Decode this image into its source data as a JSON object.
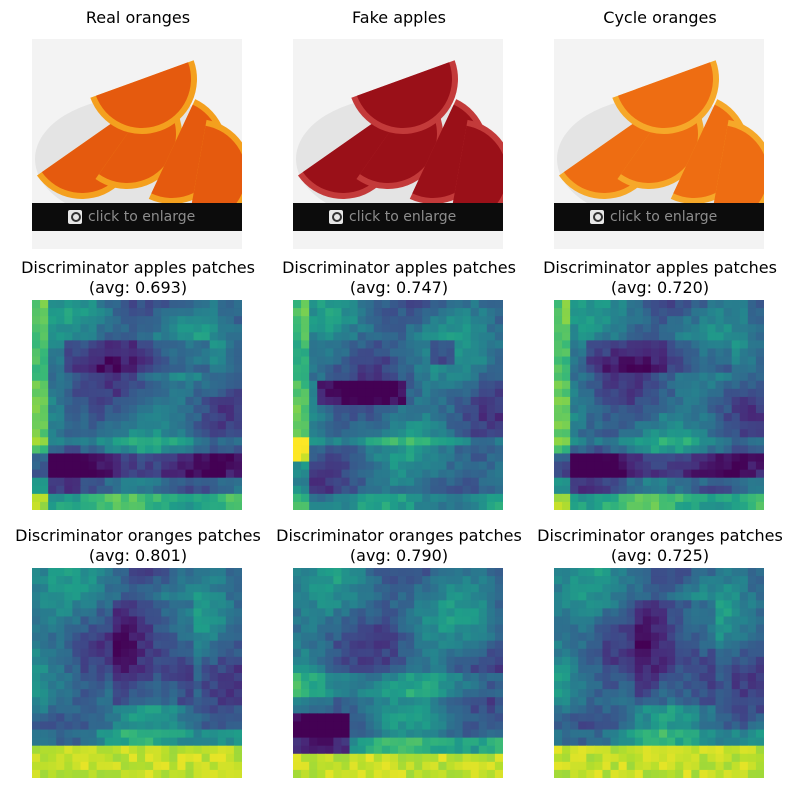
{
  "chart_data": [
    {
      "type": "image",
      "title": "Real oranges",
      "content": "orange slices",
      "fruit_color": "#e55a0e",
      "rind_color": "#f4a01e",
      "caption": "click to enlarge",
      "caption_icon": "magnifier-icon"
    },
    {
      "type": "image",
      "title": "Fake apples",
      "content": "red-tinted orange slices",
      "fruit_color": "#9a1018",
      "rind_color": "#c33a3a",
      "caption": "click to enlarge",
      "caption_icon": "magnifier-icon"
    },
    {
      "type": "image",
      "title": "Cycle oranges",
      "content": "orange slices",
      "fruit_color": "#ee6d12",
      "rind_color": "#f6a829",
      "caption": "click to enlarge",
      "caption_icon": "magnifier-icon"
    },
    {
      "type": "heatmap",
      "title": "Discriminator apples patches",
      "subtitle": "(avg: 0.693)",
      "avg": 0.693,
      "colormap": "viridis",
      "grid": [
        26,
        26
      ],
      "pattern": "band_dark_lower"
    },
    {
      "type": "heatmap",
      "title": "Discriminator apples patches",
      "subtitle": "(avg: 0.747)",
      "avg": 0.747,
      "colormap": "viridis",
      "grid": [
        26,
        26
      ],
      "pattern": "swirl_bright_left"
    },
    {
      "type": "heatmap",
      "title": "Discriminator apples patches",
      "subtitle": "(avg: 0.720)",
      "avg": 0.72,
      "colormap": "viridis",
      "grid": [
        26,
        26
      ],
      "pattern": "band_dark_lower"
    },
    {
      "type": "heatmap",
      "title": "Discriminator oranges patches",
      "subtitle": "(avg: 0.801)",
      "avg": 0.801,
      "colormap": "viridis",
      "grid": [
        26,
        26
      ],
      "pattern": "bright_bottom"
    },
    {
      "type": "heatmap",
      "title": "Discriminator oranges patches",
      "subtitle": "(avg: 0.790)",
      "avg": 0.79,
      "colormap": "viridis",
      "grid": [
        26,
        26
      ],
      "pattern": "bright_bottom_dark_corner"
    },
    {
      "type": "heatmap",
      "title": "Discriminator oranges patches",
      "subtitle": "(avg: 0.725)",
      "avg": 0.725,
      "colormap": "viridis",
      "grid": [
        26,
        26
      ],
      "pattern": "bright_bottom"
    }
  ]
}
